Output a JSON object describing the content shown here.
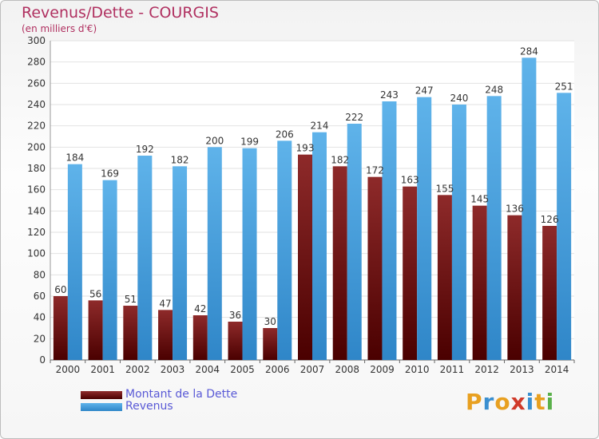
{
  "header": {
    "title": "Revenus/Dette - COURGIS",
    "subtitle": "(en milliers d'€)"
  },
  "colors": {
    "dette": "#7a1a1a",
    "revenus": "#4aa3e0",
    "title": "#b03060",
    "legend_text": "#5a5ad6"
  },
  "chart_data": {
    "type": "bar",
    "categories": [
      "2000",
      "2001",
      "2002",
      "2003",
      "2004",
      "2005",
      "2006",
      "2007",
      "2008",
      "2009",
      "2010",
      "2011",
      "2012",
      "2013",
      "2014"
    ],
    "series": [
      {
        "name": "Montant de la Dette",
        "values": [
          60,
          56,
          51,
          47,
          42,
          36,
          30,
          193,
          182,
          172,
          163,
          155,
          145,
          136,
          126
        ]
      },
      {
        "name": "Revenus",
        "values": [
          184,
          169,
          192,
          182,
          200,
          199,
          206,
          214,
          222,
          243,
          247,
          240,
          248,
          284,
          251
        ]
      }
    ],
    "ylim": [
      0,
      300
    ],
    "yticks": [
      0,
      20,
      40,
      60,
      80,
      100,
      120,
      140,
      160,
      180,
      200,
      220,
      240,
      260,
      280,
      300
    ],
    "grid": true,
    "legend": "bottom-left"
  },
  "legend": {
    "items": [
      {
        "label": "Montant de la Dette"
      },
      {
        "label": "Revenus"
      }
    ]
  },
  "logo": {
    "letters": [
      {
        "ch": "P",
        "color": "#e8a020"
      },
      {
        "ch": "r",
        "color": "#3a8fd0"
      },
      {
        "ch": "o",
        "color": "#e8a020"
      },
      {
        "ch": "x",
        "color": "#d03a2a"
      },
      {
        "ch": "i",
        "color": "#3a8fd0"
      },
      {
        "ch": "t",
        "color": "#e8a020"
      },
      {
        "ch": "i",
        "color": "#5ab04a"
      }
    ]
  }
}
